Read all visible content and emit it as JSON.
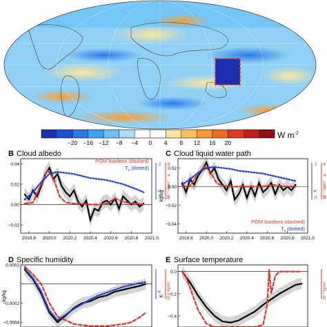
{
  "colorbar": {
    "unit": "W m",
    "unit_exp": "-2",
    "ticks": [
      "−20",
      "−16",
      "−12",
      "−8",
      "−4",
      "0",
      "4",
      "8",
      "12",
      "16",
      "20"
    ],
    "colors": [
      "#1d2fae",
      "#1f4fd1",
      "#2a7be8",
      "#3aa3f2",
      "#6cc3f5",
      "#a9dcf7",
      "#ffffff",
      "#ffffff",
      "#fde6a0",
      "#f9c060",
      "#f59a34",
      "#ee6b25",
      "#df3a1f",
      "#bf1d1d",
      "#8e0f14"
    ]
  },
  "chart_data": [
    {
      "panel": "A",
      "type": "heatmap",
      "title": "",
      "xlabel": "",
      "ylabel": "",
      "range": [
        -20,
        20
      ],
      "note": "global map of radiative anomaly with dashed red box near 150°W–140°W, 10°S–25°S"
    },
    {
      "panel": "B",
      "type": "line",
      "title": "Cloud albedo",
      "panel_letter": "B",
      "ylabel_left": "",
      "yticks": [
        "0.04",
        "0.02",
        "0.00",
        "−0.02"
      ],
      "ylim": [
        -0.028,
        0.045
      ],
      "xticks": [
        "2019.8",
        "2020.0",
        "2020.2",
        "2020.4",
        "2020.6",
        "2020.8",
        "2021.0"
      ],
      "xlim": [
        2019.72,
        2021.0
      ],
      "legend": [
        "POM burdens (dashed)",
        "T",
        "s",
        " (dotted)"
      ],
      "right_axis_blue": {
        "ticks": [
          "2",
          "0"
        ],
        "unit": "K"
      },
      "right_axis_red": {
        "ticks": [
          "6",
          "4",
          "2",
          "0"
        ],
        "unit": "10⁻⁴ kg/m²"
      },
      "series": [
        {
          "name": "cloud albedo",
          "style": "solid-black",
          "x": [
            2019.76,
            2019.8,
            2019.84,
            2019.88,
            2019.92,
            2019.96,
            2020.0,
            2020.04,
            2020.08,
            2020.12,
            2020.16,
            2020.2,
            2020.24,
            2020.28,
            2020.32,
            2020.36,
            2020.4,
            2020.44,
            2020.48,
            2020.52,
            2020.56,
            2020.6,
            2020.64,
            2020.68,
            2020.72,
            2020.76,
            2020.8,
            2020.84,
            2020.88,
            2020.92
          ],
          "y": [
            0.01,
            0.005,
            0.014,
            0.008,
            0.018,
            0.03,
            0.036,
            0.025,
            0.03,
            0.018,
            0.012,
            0.008,
            0.014,
            0.003,
            -0.002,
            0.004,
            -0.015,
            -0.004,
            -0.006,
            0.002,
            0.004,
            0.0,
            0.006,
            -0.004,
            0.008,
            0.004,
            0.0,
            0.003,
            -0.002,
            0.001
          ]
        },
        {
          "name": "POM burdens",
          "style": "dashed-red",
          "x": [
            2019.76,
            2019.84,
            2019.92,
            2019.98,
            2020.04,
            2020.1,
            2020.16,
            2020.24,
            2020.32,
            2020.4,
            2020.48,
            2020.56,
            2020.64,
            2020.72,
            2020.8,
            2020.88,
            2020.92
          ],
          "y": [
            0.001,
            0.002,
            0.02,
            0.034,
            0.026,
            0.008,
            0.002,
            0.001,
            0.001,
            0.0,
            0.0,
            0.001,
            0.006,
            0.003,
            0.001,
            0.001,
            0.0
          ]
        },
        {
          "name": "Ts",
          "style": "dotted-blue",
          "x": [
            2019.76,
            2019.84,
            2019.92,
            2020.0,
            2020.08,
            2020.16,
            2020.24,
            2020.32,
            2020.4,
            2020.48,
            2020.56,
            2020.64,
            2020.72,
            2020.8,
            2020.88,
            2020.92
          ],
          "y": [
            0.005,
            0.012,
            0.022,
            0.03,
            0.032,
            0.031,
            0.03,
            0.028,
            0.026,
            0.025,
            0.024,
            0.022,
            0.02,
            0.017,
            0.014,
            0.012
          ]
        }
      ]
    },
    {
      "panel": "C",
      "type": "line",
      "title": "Cloud liquid water path",
      "panel_letter": "C",
      "ylabel_left": "kg/kg",
      "yticks": [
        "0.02",
        "0.00",
        "−0.02",
        "−0.04"
      ],
      "ylim": [
        -0.05,
        0.03
      ],
      "xticks": [
        "2019.8",
        "2020.0",
        "2020.2",
        "2020.4",
        "2020.6",
        "2020.8",
        "2021.0"
      ],
      "xlim": [
        2019.72,
        2021.0
      ],
      "legend": [
        "POM burdens (dashed)",
        "T",
        "s",
        " (dotted)"
      ],
      "right_axis_blue": {
        "ticks": [
          "2",
          "0"
        ],
        "unit": "K"
      },
      "right_axis_red": {
        "ticks": [
          "6",
          "4",
          "2",
          "0"
        ],
        "unit": "10⁻⁴ kg/m²"
      },
      "series": [
        {
          "name": "cloud liquid water path",
          "style": "solid-black",
          "x": [
            2019.76,
            2019.8,
            2019.84,
            2019.88,
            2019.92,
            2019.96,
            2020.0,
            2020.04,
            2020.08,
            2020.12,
            2020.16,
            2020.2,
            2020.24,
            2020.28,
            2020.32,
            2020.36,
            2020.4,
            2020.44,
            2020.48,
            2020.52,
            2020.56,
            2020.6,
            2020.64,
            2020.68,
            2020.72,
            2020.76,
            2020.8,
            2020.84,
            2020.88
          ],
          "y": [
            0.004,
            -0.006,
            0.008,
            0.002,
            0.012,
            0.018,
            0.026,
            0.014,
            0.02,
            0.008,
            0.002,
            -0.004,
            0.006,
            -0.014,
            -0.008,
            0.002,
            -0.012,
            0.0,
            -0.01,
            0.004,
            -0.006,
            -0.002,
            0.004,
            -0.008,
            0.002,
            -0.004,
            0.0,
            -0.004,
            0.002
          ]
        },
        {
          "name": "POM burdens",
          "style": "dashed-red",
          "x": [
            2019.76,
            2019.84,
            2019.92,
            2019.98,
            2020.04,
            2020.1,
            2020.16,
            2020.24,
            2020.32,
            2020.4,
            2020.48,
            2020.56,
            2020.64,
            2020.72,
            2020.8,
            2020.88
          ],
          "y": [
            0.0,
            0.001,
            0.014,
            0.022,
            0.016,
            0.004,
            0.001,
            0.0,
            0.0,
            0.0,
            0.0,
            0.0,
            0.002,
            0.001,
            0.0,
            0.0
          ]
        },
        {
          "name": "Ts",
          "style": "dotted-blue",
          "x": [
            2019.76,
            2019.84,
            2019.92,
            2020.0,
            2020.08,
            2020.16,
            2020.24,
            2020.32,
            2020.4,
            2020.48,
            2020.56,
            2020.64,
            2020.72,
            2020.8,
            2020.88
          ],
          "y": [
            0.002,
            0.008,
            0.015,
            0.02,
            0.021,
            0.02,
            0.019,
            0.017,
            0.016,
            0.015,
            0.014,
            0.012,
            0.01,
            0.008,
            0.006
          ]
        }
      ]
    },
    {
      "panel": "D",
      "type": "line",
      "title": "Specific humidity",
      "panel_letter": "D",
      "ylabel_left": "kg/kg",
      "yticks": [
        "0.0002",
        "−0.0002",
        "−0.0004"
      ],
      "ylim": [
        -0.00045,
        0.0002
      ],
      "xticks": [],
      "xlim": [
        2019.72,
        2021.0
      ],
      "right_axis_blue": {
        "ticks": [],
        "unit": "K"
      },
      "right_axis_red": {
        "ticks": [],
        "unit": "10⁻⁴ kg/m²"
      },
      "series": [
        {
          "name": "specific humidity",
          "style": "solid-black",
          "x": [
            2019.76,
            2019.84,
            2019.92,
            2020.0,
            2020.08,
            2020.16,
            2020.24,
            2020.32,
            2020.4,
            2020.48,
            2020.56,
            2020.64,
            2020.72,
            2020.8,
            2020.88,
            2020.94
          ],
          "y": [
            0.00015,
            5e-05,
            -0.0001,
            -0.0003,
            -0.0004,
            -0.00033,
            -0.00025,
            -0.0002,
            -0.00018,
            -0.00014,
            -0.00012,
            -8e-05,
            -6e-05,
            -4e-05,
            -2e-05,
            0.0
          ]
        },
        {
          "name": "POM burdens",
          "style": "dashed-red",
          "x": [
            2019.76,
            2019.84,
            2019.92,
            2020.0,
            2020.08,
            2020.16,
            2020.24,
            2020.32,
            2020.4,
            2020.48,
            2020.56,
            2020.64,
            2020.72,
            2020.8,
            2020.88,
            2020.94
          ],
          "y": [
            0.00018,
            0.0001,
            0.0,
            -0.0002,
            -0.00034,
            -0.00038,
            -0.00042,
            -0.00043,
            -0.00044,
            -0.00044,
            -0.00044,
            -0.00043,
            -0.00042,
            -0.0004,
            -0.00035,
            -0.0003
          ]
        },
        {
          "name": "Ts",
          "style": "dotted-blue",
          "x": [
            2019.76,
            2019.84,
            2019.92,
            2020.0,
            2020.08,
            2020.16,
            2020.24,
            2020.32,
            2020.4,
            2020.48,
            2020.56,
            2020.64,
            2020.72,
            2020.8,
            2020.88,
            2020.94
          ],
          "y": [
            0.00016,
            6e-05,
            -8e-05,
            -0.00028,
            -0.00038,
            -0.00032,
            -0.00026,
            -0.00021,
            -0.00016,
            -0.00012,
            -9e-05,
            -6e-05,
            -3e-05,
            -1e-05,
            1e-05,
            2e-05
          ]
        }
      ]
    },
    {
      "panel": "E",
      "type": "line",
      "title": "Surface temperature",
      "panel_letter": "E",
      "ylabel_left": "K",
      "yticks": [
        "0.0",
        "−0.2",
        "−0.4"
      ],
      "ylim": [
        -0.5,
        0.06
      ],
      "xticks": [],
      "xlim": [
        2019.72,
        2021.0
      ],
      "right_axis_red": {
        "ticks": [],
        "unit": "10⁻⁴ kg/m²"
      },
      "series": [
        {
          "name": "surface temperature",
          "style": "solid-black",
          "x": [
            2019.76,
            2019.84,
            2019.92,
            2020.0,
            2020.08,
            2020.16,
            2020.24,
            2020.32,
            2020.4,
            2020.48,
            2020.56,
            2020.64,
            2020.72,
            2020.8,
            2020.88,
            2020.94
          ],
          "y": [
            0.0,
            -0.1,
            -0.22,
            -0.32,
            -0.4,
            -0.45,
            -0.46,
            -0.44,
            -0.4,
            -0.36,
            -0.3,
            -0.25,
            -0.2,
            -0.16,
            -0.12,
            -0.11
          ]
        },
        {
          "name": "POM burdens",
          "style": "dashed-red",
          "x": [
            2019.76,
            2019.8,
            2019.84,
            2019.92,
            2020.0,
            2020.08,
            2020.16,
            2020.24,
            2020.32,
            2020.4,
            2020.48,
            2020.56,
            2020.6,
            2020.62,
            2020.64,
            2020.68,
            2020.72,
            2020.8,
            2020.88,
            2020.94
          ],
          "y": [
            0.0,
            -0.05,
            -0.15,
            -0.35,
            -0.47,
            -0.5,
            -0.5,
            -0.5,
            -0.5,
            -0.5,
            -0.5,
            -0.48,
            -0.3,
            0.02,
            -0.2,
            -0.04,
            0.0,
            0.0,
            0.0,
            0.0
          ]
        }
      ]
    }
  ]
}
